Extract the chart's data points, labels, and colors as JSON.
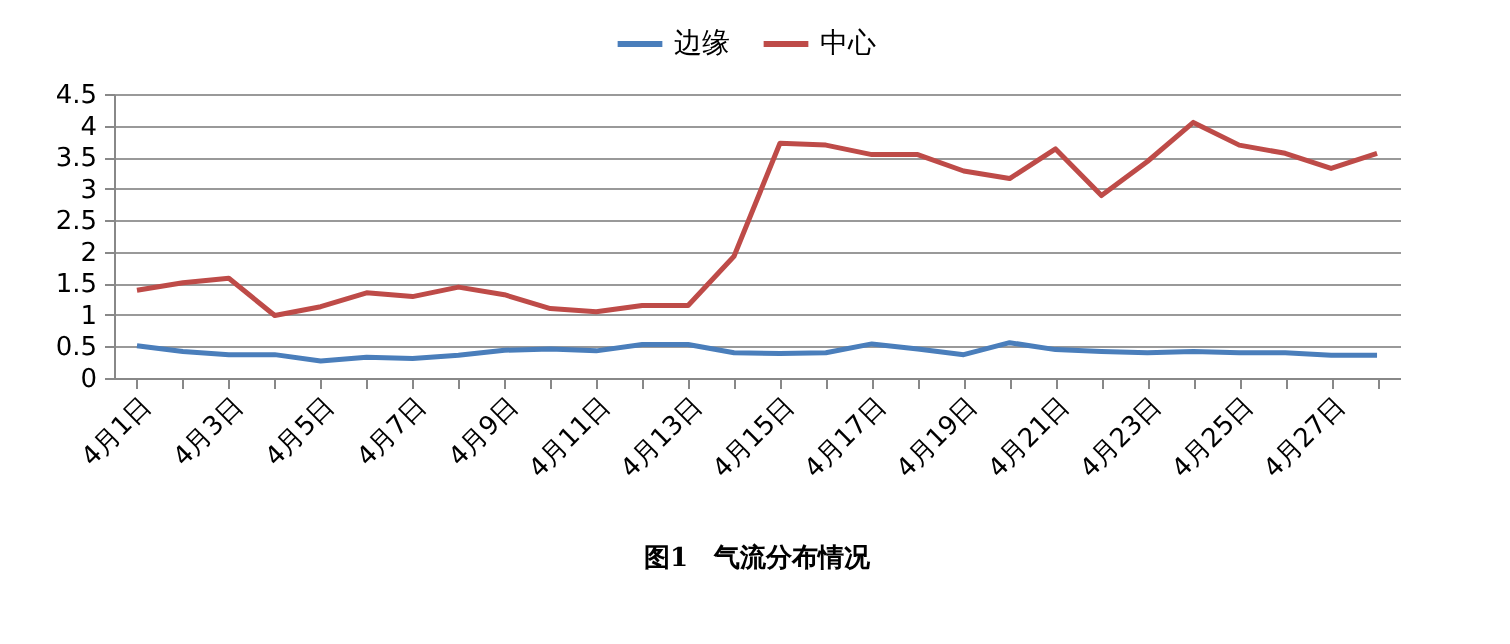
{
  "chart_data": {
    "type": "line",
    "categories": [
      "4月1日",
      null,
      "4月3日",
      null,
      "4月5日",
      null,
      "4月7日",
      null,
      "4月9日",
      null,
      "4月11日",
      null,
      "4月13日",
      null,
      "4月15日",
      null,
      "4月17日",
      null,
      "4月19日",
      null,
      "4月21日",
      null,
      "4月23日",
      null,
      "4月25日",
      null,
      "4月27日",
      null
    ],
    "series": [
      {
        "name": "边缘",
        "color": "#4a7ebb",
        "values": [
          0.51,
          0.42,
          0.37,
          0.37,
          0.27,
          0.33,
          0.31,
          0.36,
          0.44,
          0.46,
          0.43,
          0.53,
          0.53,
          0.4,
          0.39,
          0.4,
          0.54,
          0.46,
          0.37,
          0.56,
          0.45,
          0.42,
          0.4,
          0.42,
          0.4,
          0.4,
          0.36,
          0.36
        ]
      },
      {
        "name": "中心",
        "color": "#be4b48",
        "values": [
          1.39,
          1.51,
          1.58,
          0.99,
          1.13,
          1.35,
          1.29,
          1.44,
          1.32,
          1.1,
          1.05,
          1.15,
          1.15,
          1.93,
          3.72,
          3.69,
          3.54,
          3.54,
          3.28,
          3.16,
          3.63,
          2.89,
          3.43,
          4.05,
          3.69,
          3.56,
          3.32,
          3.56
        ]
      }
    ],
    "ylim": [
      0,
      4.5
    ],
    "yticks": [
      0,
      0.5,
      1,
      1.5,
      2,
      2.5,
      3,
      3.5,
      4,
      4.5
    ],
    "grid": "y",
    "legend": "top",
    "marker": "none",
    "line_style": "solid",
    "annotations": [
      "图1　气流分布情况"
    ]
  }
}
